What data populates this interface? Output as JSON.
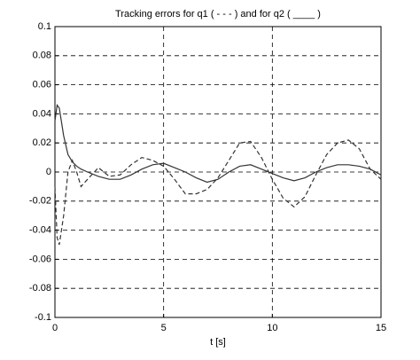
{
  "chart_data": {
    "type": "line",
    "title": "Tracking errors for q1 ( - - - ) and for q2 ( ____ )",
    "x_label": "t [s]",
    "x": [
      0,
      0.1,
      0.2,
      0.4,
      0.6,
      0.8,
      1,
      1.2,
      1.5,
      2,
      2.5,
      3,
      3.5,
      4,
      4.5,
      5,
      5.5,
      6,
      6.5,
      7,
      7.5,
      8,
      8.5,
      9,
      9.5,
      10,
      10.5,
      11,
      11.5,
      12,
      12.5,
      13,
      13.5,
      14,
      14.5,
      15
    ],
    "series": [
      {
        "name": "q1",
        "color": "#333333",
        "dash": true,
        "values": [
          -0.01,
          -0.045,
          -0.05,
          -0.03,
          0.0,
          0.008,
          0.0,
          -0.01,
          -0.005,
          0.003,
          -0.003,
          -0.002,
          0.005,
          0.01,
          0.008,
          0.004,
          -0.005,
          -0.015,
          -0.015,
          -0.012,
          -0.004,
          0.008,
          0.02,
          0.021,
          0.01,
          -0.005,
          -0.018,
          -0.024,
          -0.017,
          -0.002,
          0.012,
          0.02,
          0.022,
          0.016,
          0.002,
          -0.005
        ]
      },
      {
        "name": "q2",
        "color": "#333333",
        "dash": false,
        "values": [
          0.035,
          0.046,
          0.044,
          0.025,
          0.012,
          0.007,
          0.004,
          0.002,
          0.0,
          -0.003,
          -0.005,
          -0.005,
          -0.002,
          0.002,
          0.005,
          0.006,
          0.003,
          0.0,
          -0.004,
          -0.007,
          -0.005,
          0.0,
          0.004,
          0.005,
          0.002,
          -0.001,
          -0.004,
          -0.006,
          -0.004,
          0.0,
          0.003,
          0.005,
          0.005,
          0.004,
          0.002,
          -0.002
        ]
      }
    ],
    "xlim": [
      0,
      15
    ],
    "xticks": [
      0,
      5,
      10,
      15
    ],
    "ylim": [
      -0.1,
      0.1
    ],
    "yticks": [
      0.1,
      0.08,
      0.06,
      0.04,
      0.02,
      0,
      -0.02,
      -0.04,
      -0.06,
      -0.08,
      -0.1
    ],
    "grid": true
  }
}
